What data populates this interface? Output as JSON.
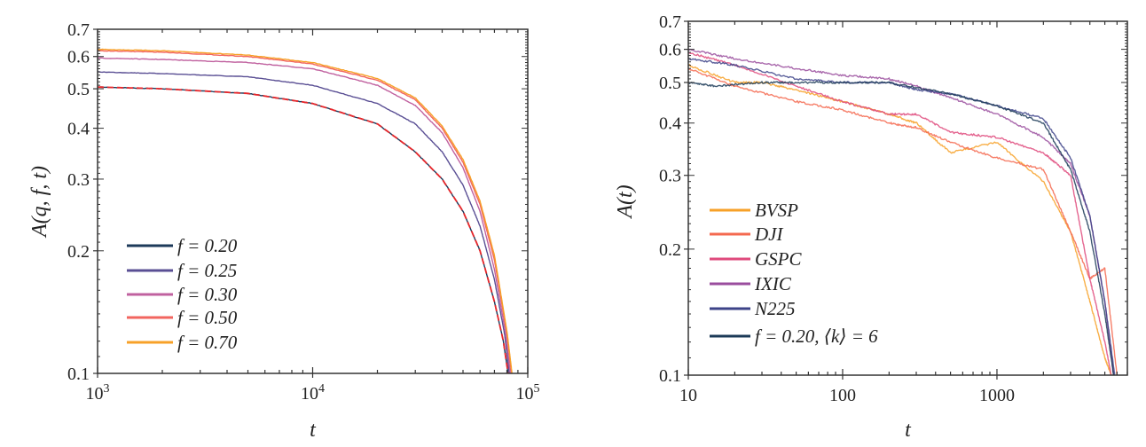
{
  "chart_data": [
    {
      "type": "line",
      "xlabel": "t",
      "ylabel": "A(q, f, t)",
      "xscale": "log",
      "yscale": "log",
      "xlim": [
        1000,
        100000
      ],
      "ylim": [
        0.1,
        0.7
      ],
      "xticks": [
        {
          "base": "10",
          "exp": "3"
        },
        {
          "base": "10",
          "exp": "4"
        },
        {
          "base": "10",
          "exp": "5"
        }
      ],
      "xtick_values": [
        1000,
        10000,
        100000
      ],
      "yticks": [
        "0.1",
        "0.2",
        "0.3",
        "0.4",
        "0.5",
        "0.6",
        "0.7"
      ],
      "grid": false,
      "legend_position": "lower-left",
      "series": [
        {
          "name": "f = 0.20",
          "color": "#1d3a5a",
          "x": [
            1000,
            2000,
            5000,
            10000,
            20000,
            30000,
            40000,
            50000,
            60000,
            70000,
            77000,
            81000
          ],
          "y": [
            0.505,
            0.5,
            0.487,
            0.46,
            0.41,
            0.35,
            0.3,
            0.25,
            0.2,
            0.15,
            0.12,
            0.1
          ]
        },
        {
          "name": "f = 0.25",
          "color": "#5a4f94",
          "x": [
            1000,
            2000,
            5000,
            10000,
            20000,
            30000,
            40000,
            50000,
            60000,
            70000,
            78000,
            82000
          ],
          "y": [
            0.55,
            0.545,
            0.535,
            0.51,
            0.46,
            0.41,
            0.35,
            0.29,
            0.23,
            0.17,
            0.125,
            0.1
          ]
        },
        {
          "name": "f = 0.30",
          "color": "#c0619f",
          "x": [
            1000,
            2000,
            5000,
            10000,
            20000,
            30000,
            40000,
            50000,
            60000,
            70000,
            79000,
            83000
          ],
          "y": [
            0.595,
            0.59,
            0.58,
            0.56,
            0.51,
            0.455,
            0.39,
            0.32,
            0.25,
            0.18,
            0.125,
            0.1
          ]
        },
        {
          "name": "f = 0.50",
          "color": "#f2655f",
          "x": [
            1000,
            2000,
            5000,
            10000,
            20000,
            30000,
            40000,
            50000,
            60000,
            70000,
            80000,
            84000
          ],
          "y": [
            0.62,
            0.615,
            0.6,
            0.575,
            0.525,
            0.47,
            0.4,
            0.33,
            0.26,
            0.19,
            0.125,
            0.1
          ]
        },
        {
          "name": "f = 0.70",
          "color": "#f7a128",
          "x": [
            1000,
            2000,
            5000,
            10000,
            20000,
            30000,
            40000,
            50000,
            60000,
            70000,
            80000,
            84500
          ],
          "y": [
            0.625,
            0.62,
            0.605,
            0.58,
            0.53,
            0.475,
            0.405,
            0.335,
            0.265,
            0.195,
            0.127,
            0.1
          ]
        },
        {
          "color": "#e8262a",
          "style": "dashed",
          "x": [
            1000,
            2000,
            5000,
            10000,
            20000,
            30000,
            40000,
            50000,
            60000,
            70000,
            77000,
            81000
          ],
          "y": [
            0.505,
            0.5,
            0.487,
            0.46,
            0.41,
            0.35,
            0.3,
            0.25,
            0.2,
            0.15,
            0.12,
            0.1
          ]
        }
      ]
    },
    {
      "type": "line",
      "xlabel": "t",
      "ylabel": "A(t)",
      "xscale": "log",
      "yscale": "log",
      "xlim": [
        10,
        7000
      ],
      "ylim": [
        0.1,
        0.7
      ],
      "xticks": [
        {
          "base": "10"
        },
        {
          "base": "100"
        },
        {
          "base": "1000"
        }
      ],
      "xtick_values": [
        10,
        100,
        1000
      ],
      "yticks": [
        "0.1",
        "0.2",
        "0.3",
        "0.4",
        "0.5",
        "0.6",
        "0.7"
      ],
      "grid": false,
      "legend_position": "lower-left",
      "series": [
        {
          "name": "BVSP",
          "color": "#f7a128",
          "x": [
            10,
            20,
            30,
            50,
            100,
            200,
            300,
            500,
            1000,
            2000,
            3000,
            4000,
            5000,
            5500
          ],
          "y": [
            0.55,
            0.5,
            0.5,
            0.48,
            0.45,
            0.42,
            0.4,
            0.34,
            0.36,
            0.29,
            0.22,
            0.15,
            0.11,
            0.1
          ]
        },
        {
          "name": "DJI",
          "color": "#f4694f",
          "x": [
            10,
            20,
            50,
            100,
            200,
            300,
            500,
            1000,
            2000,
            3000,
            4000,
            5000,
            6000
          ],
          "y": [
            0.54,
            0.49,
            0.45,
            0.43,
            0.4,
            0.39,
            0.36,
            0.33,
            0.31,
            0.22,
            0.17,
            0.18,
            0.1
          ]
        },
        {
          "name": "GSPC",
          "color": "#df4a7c",
          "x": [
            10,
            20,
            50,
            100,
            200,
            300,
            500,
            1000,
            2000,
            3000,
            4000,
            5000,
            5500
          ],
          "y": [
            0.59,
            0.55,
            0.49,
            0.45,
            0.42,
            0.42,
            0.38,
            0.37,
            0.34,
            0.3,
            0.17,
            0.12,
            0.1
          ]
        },
        {
          "name": "IXIC",
          "color": "#9a4d9e",
          "x": [
            10,
            20,
            50,
            100,
            200,
            300,
            500,
            1000,
            2000,
            3000,
            4000,
            5000,
            5700
          ],
          "y": [
            0.6,
            0.57,
            0.54,
            0.52,
            0.51,
            0.49,
            0.46,
            0.42,
            0.37,
            0.32,
            0.24,
            0.15,
            0.1
          ]
        },
        {
          "name": "N225",
          "color": "#3d4388",
          "x": [
            10,
            20,
            50,
            100,
            200,
            300,
            500,
            1000,
            2000,
            3000,
            4000,
            5000,
            5800
          ],
          "y": [
            0.57,
            0.55,
            0.51,
            0.5,
            0.5,
            0.48,
            0.47,
            0.44,
            0.41,
            0.33,
            0.24,
            0.15,
            0.1
          ]
        },
        {
          "name": "f = 0.20, ⟨k⟩ = 6",
          "color": "#1b3a57",
          "x": [
            10,
            15,
            30,
            50,
            100,
            200,
            500,
            1000,
            2000,
            3000,
            4000,
            5000,
            5700
          ],
          "y": [
            0.5,
            0.49,
            0.5,
            0.5,
            0.5,
            0.5,
            0.47,
            0.44,
            0.4,
            0.31,
            0.22,
            0.14,
            0.1
          ]
        }
      ]
    }
  ]
}
